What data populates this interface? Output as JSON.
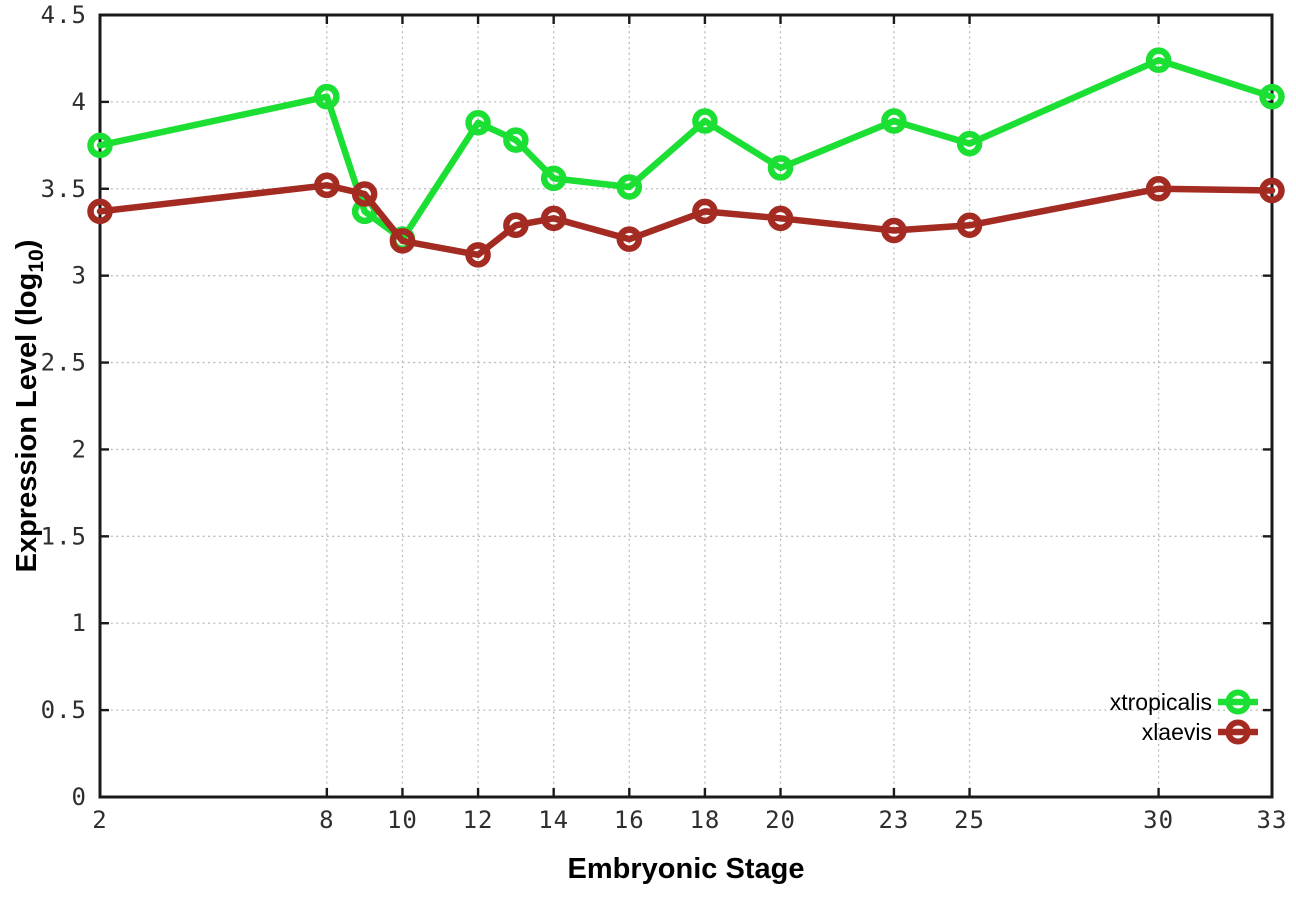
{
  "chart_data": {
    "type": "line",
    "xlabel": "Embryonic Stage",
    "ylabel": "Expression Level (log10)",
    "ylabel_parts": {
      "main": "Expression Level (log",
      "sub": "10",
      "close": ")"
    },
    "xlim": [
      2,
      33
    ],
    "ylim": [
      0,
      4.5
    ],
    "grid": true,
    "legend_position": "bottom-right",
    "xticks": [
      2,
      8,
      10,
      12,
      14,
      16,
      18,
      20,
      23,
      25,
      30,
      33
    ],
    "yticks": [
      0,
      0.5,
      1,
      1.5,
      2,
      2.5,
      3,
      3.5,
      4,
      4.5
    ],
    "ytick_labels": [
      "0",
      "0.5",
      "1",
      "1.5",
      "2",
      "2.5",
      "3",
      "3.5",
      "4",
      "4.5"
    ],
    "x": [
      2,
      8,
      9,
      10,
      12,
      13,
      14,
      16,
      18,
      20,
      23,
      25,
      30,
      33
    ],
    "series": [
      {
        "name": "xtropicalis",
        "color": "#1bdf33",
        "values": [
          3.75,
          4.03,
          3.37,
          3.21,
          3.88,
          3.78,
          3.56,
          3.51,
          3.89,
          3.62,
          3.89,
          3.76,
          4.24,
          4.03
        ]
      },
      {
        "name": "xlaevis",
        "color": "#a32b22",
        "values": [
          3.37,
          3.52,
          3.47,
          3.2,
          3.12,
          3.29,
          3.33,
          3.21,
          3.37,
          3.33,
          3.26,
          3.29,
          3.5,
          3.49
        ]
      }
    ],
    "colors": {
      "grid": "#bcbcbc",
      "axis": "#1a1a1a",
      "tick_label": "#2e2e2e"
    }
  }
}
